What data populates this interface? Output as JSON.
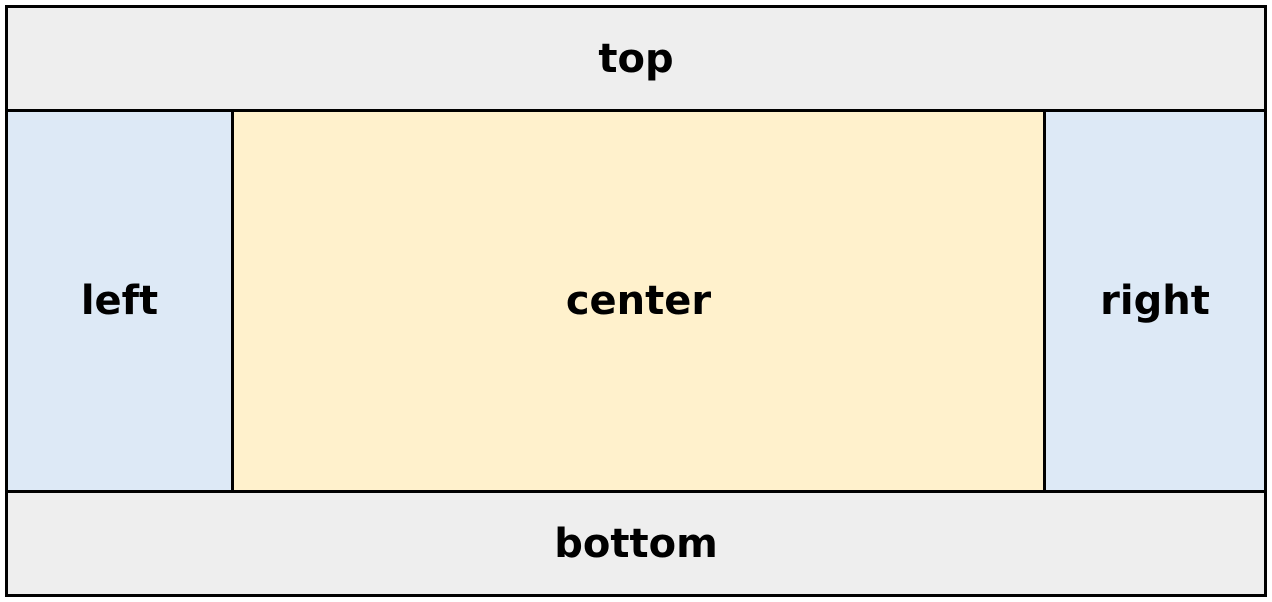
{
  "regions": {
    "top": {
      "label": "top",
      "color": "#eeeeee"
    },
    "left": {
      "label": "left",
      "color": "#dde9f6"
    },
    "center": {
      "label": "center",
      "color": "#fff1cc"
    },
    "right": {
      "label": "right",
      "color": "#dde9f6"
    },
    "bottom": {
      "label": "bottom",
      "color": "#eeeeee"
    }
  },
  "border_color": "#000000"
}
